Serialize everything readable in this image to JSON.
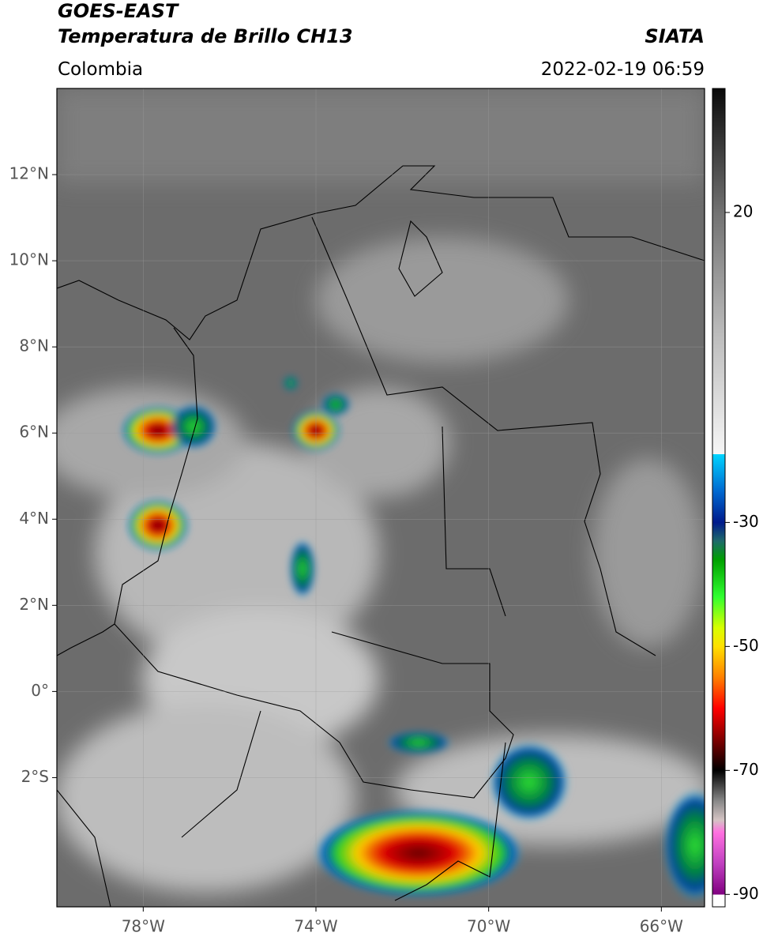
{
  "header": {
    "title": "GOES-EAST",
    "subtitle": "Temperatura de Brillo CH13",
    "region": "Colombia",
    "source": "SIATA",
    "datetime": "2022-02-19 06:59"
  },
  "map": {
    "xlim": [
      -80,
      -65
    ],
    "ylim": [
      -5,
      14
    ],
    "yticks": [
      {
        "value": 12,
        "label": "12°N"
      },
      {
        "value": 10,
        "label": "10°N"
      },
      {
        "value": 8,
        "label": "8°N"
      },
      {
        "value": 6,
        "label": "6°N"
      },
      {
        "value": 4,
        "label": "4°N"
      },
      {
        "value": 2,
        "label": "2°N"
      },
      {
        "value": 0,
        "label": "0°"
      },
      {
        "value": -2,
        "label": "2°S"
      }
    ],
    "xticks": [
      {
        "value": -78,
        "label": "78°W"
      },
      {
        "value": -74,
        "label": "74°W"
      },
      {
        "value": -70,
        "label": "70°W"
      },
      {
        "value": -66,
        "label": "66°W"
      }
    ],
    "grid": true
  },
  "colorbar": {
    "lim": [
      -92,
      40
    ],
    "ticks": [
      20,
      -30,
      -50,
      -70,
      -90
    ],
    "stops": [
      {
        "value": 40,
        "color": "#0a0a0a"
      },
      {
        "value": 20,
        "color": "#727272"
      },
      {
        "value": 0,
        "color": "#bdbdbd"
      },
      {
        "value": -19,
        "color": "#f6f6f6"
      },
      {
        "value": -19,
        "color": "#00d4ff"
      },
      {
        "value": -25,
        "color": "#0068d0"
      },
      {
        "value": -30,
        "color": "#001a8c"
      },
      {
        "value": -33,
        "color": "#1e6a6a"
      },
      {
        "value": -36,
        "color": "#00a000"
      },
      {
        "value": -42,
        "color": "#30ff30"
      },
      {
        "value": -47,
        "color": "#d8ff00"
      },
      {
        "value": -50,
        "color": "#ffe000"
      },
      {
        "value": -55,
        "color": "#ff8000"
      },
      {
        "value": -60,
        "color": "#ff0000"
      },
      {
        "value": -65,
        "color": "#800000"
      },
      {
        "value": -70,
        "color": "#000000"
      },
      {
        "value": -75,
        "color": "#8a8a8a"
      },
      {
        "value": -78,
        "color": "#d4c4c4"
      },
      {
        "value": -80,
        "color": "#ff70e0"
      },
      {
        "value": -85,
        "color": "#c040c0"
      },
      {
        "value": -90,
        "color": "#800080"
      },
      {
        "value": -90,
        "color": "#ffffff"
      }
    ]
  }
}
